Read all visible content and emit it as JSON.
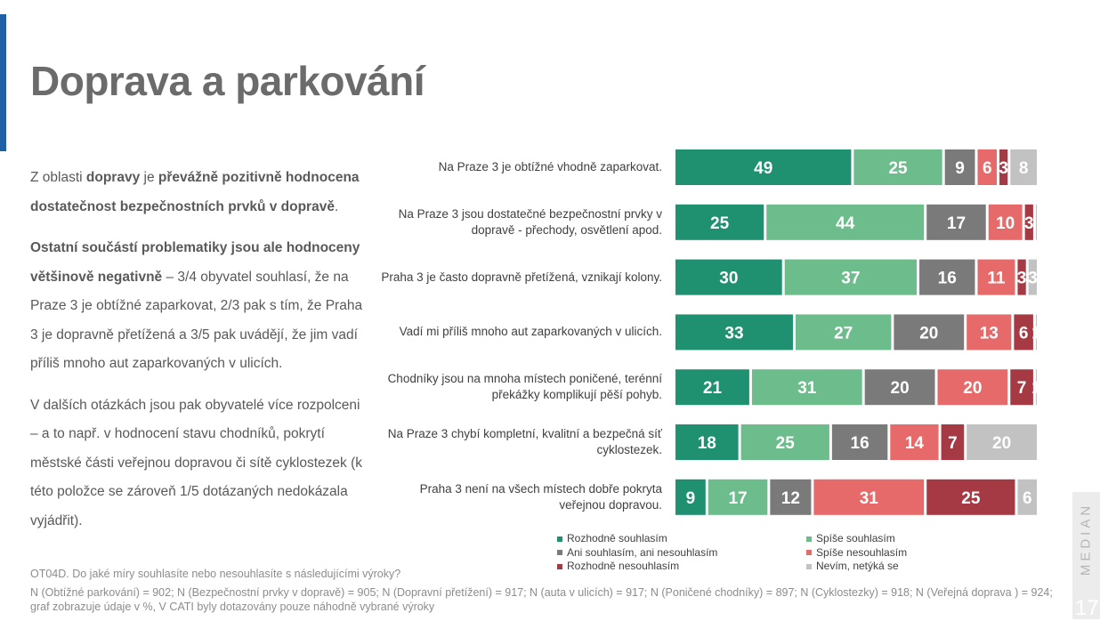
{
  "title": "Doprava a parkování",
  "text": {
    "p1_a": "Z oblasti ",
    "p1_b": "dopravy",
    "p1_c": " je ",
    "p1_d": "převážně pozitivně hodnocena dostatečnost bezpečnostních prvků v dopravě",
    "p1_e": ".",
    "p2_a": "Ostatní součástí problematiky jsou ale hodnoceny většinově negativně",
    "p2_b": " – 3/4 obyvatel souhlasí, že na Praze 3 je obtížné zaparkovat, 2/3 pak s tím, že Praha 3 je dopravně přetížená a 3/5 pak uvádějí, že jim vadí příliš mnoho aut zaparkovaných v ulicích.",
    "p3": "V dalších otázkách jsou pak obyvatelé více rozpolceni – a to např. v hodnocení stavu chodníků, pokrytí městské části veřejnou dopravou či sítě cyklostezek (k této položce se zároveň 1/5 dotázaných nedokázala vyjádřit)."
  },
  "chart_data": {
    "type": "bar",
    "orientation": "horizontal",
    "stacked": "100%",
    "unit": "%",
    "categories": [
      "Na Praze 3 je obtížné vhodně zaparkovat.",
      "Na Praze 3 jsou dostatečné bezpečnostní prvky v dopravě - přechody, osvětlení apod.",
      "Praha 3 je často dopravně přetížená, vznikají kolony.",
      "Vadí mi příliš mnoho aut zaparkovaných v ulicích.",
      "Chodníky jsou na mnoha místech poničené, terénní překážky komplikují pěší pohyb.",
      "Na Praze 3 chybí kompletní, kvalitní a bezpečná síť cyklostezek.",
      "Praha 3 není na všech místech dobře pokryta veřejnou dopravou."
    ],
    "series": [
      {
        "name": "Rozhodně souhlasím",
        "color": "#1f9070",
        "values": [
          49,
          25,
          30,
          33,
          21,
          18,
          9
        ]
      },
      {
        "name": "Spíše souhlasím",
        "color": "#6cbc8c",
        "values": [
          25,
          44,
          37,
          27,
          31,
          25,
          17
        ]
      },
      {
        "name": "Ani souhlasím, ani nesouhlasím",
        "color": "#7a7a7a",
        "values": [
          9,
          17,
          16,
          20,
          20,
          16,
          12
        ]
      },
      {
        "name": "Spíše nesouhlasím",
        "color": "#e66a6a",
        "values": [
          6,
          10,
          11,
          13,
          20,
          14,
          31
        ]
      },
      {
        "name": "Rozhodně nesouhlasím",
        "color": "#a63a44",
        "values": [
          3,
          3,
          3,
          6,
          7,
          7,
          25
        ]
      },
      {
        "name": "Nevím, netýká se",
        "color": "#c2c2c2",
        "values": [
          8,
          1,
          3,
          1,
          1,
          20,
          6
        ]
      }
    ],
    "labels": [
      [
        "49",
        "25",
        "9",
        "6",
        "3",
        "8"
      ],
      [
        "25",
        "44",
        "17",
        "10",
        "3",
        ""
      ],
      [
        "30",
        "37",
        "16",
        "11",
        "3",
        "3"
      ],
      [
        "33",
        "27",
        "20",
        "13",
        "6",
        "1"
      ],
      [
        "21",
        "31",
        "20",
        "20",
        "7",
        "1"
      ],
      [
        "18",
        "25",
        "16",
        "14",
        "7",
        "20"
      ],
      [
        "9",
        "17",
        "12",
        "31",
        "25",
        "6"
      ]
    ],
    "xlim": [
      0,
      100
    ],
    "legend_position": "bottom"
  },
  "footnote": {
    "question": "OT04D. Do jaké míry souhlasíte nebo nesouhlasíte s následujícími výroky?",
    "n_note": "N (Obtížné parkování) =  902; N (Bezpečnostní prvky v dopravě) = 905; N (Dopravní přetížení) =  917;  N (auta v ulicích) =  917;  N (Poničené chodníky) =  897; N (Cyklostezky) =  918; N (Veřejná doprava ) = 924; graf zobrazuje údaje v %, V CATI byly dotazovány pouze náhodně vybrané výroky"
  },
  "branding": {
    "logo": "MEDIAN",
    "page_number": "17"
  }
}
